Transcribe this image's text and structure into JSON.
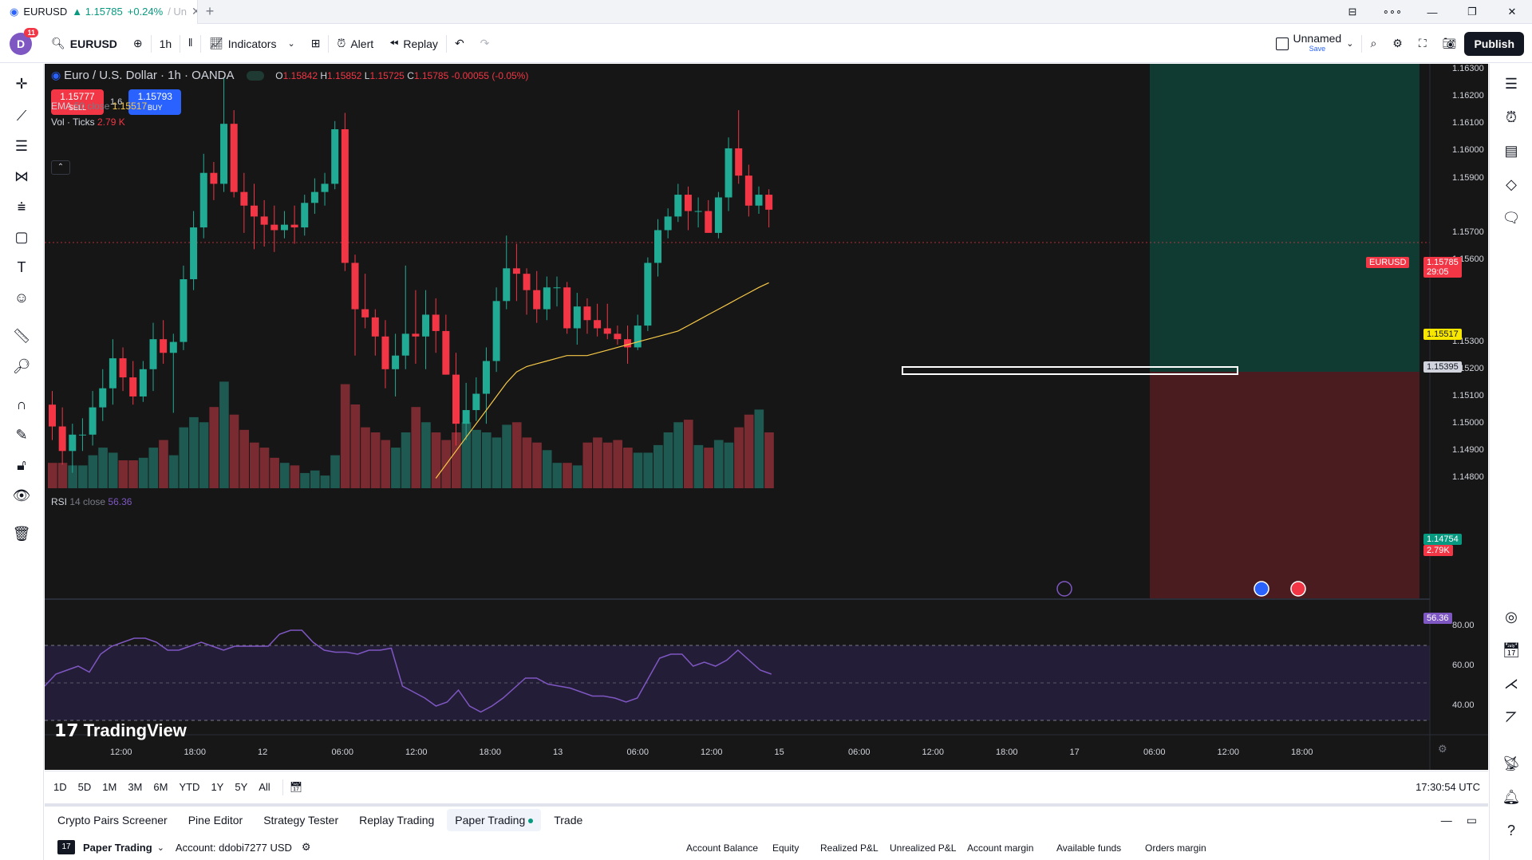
{
  "window": {
    "tab_symbol": "EURUSD",
    "tab_price": "▲ 1.15785",
    "tab_change": "+0.24%",
    "tab_suffix": "/ Un",
    "controls": [
      "⊟",
      "∘∘∘",
      "—",
      "❐",
      "✕"
    ]
  },
  "toolbar": {
    "avatar_letter": "D",
    "avatar_badge": "11",
    "symbol": "EURUSD",
    "interval": "1h",
    "indicators_label": "Indicators",
    "alert_label": "Alert",
    "replay_label": "Replay",
    "layout_name": "Unnamed",
    "layout_save": "Save",
    "publish_label": "Publish"
  },
  "chart": {
    "title": "Euro / U.S. Dollar · 1h · OANDA",
    "ohlc": {
      "o_label": "O",
      "o": "1.15842",
      "h_label": "H",
      "h": "1.15852",
      "l_label": "L",
      "l": "1.15725",
      "c_label": "C",
      "c": "1.15785",
      "change": "-0.00055 (-0.05%)"
    },
    "sell_price": "1.15777",
    "sell_label": "SELL",
    "spread": "1.6",
    "buy_price": "1.15793",
    "buy_label": "BUY",
    "ema_label": "EMA",
    "ema_params": "50 close",
    "ema_value": "1.15517",
    "vol_label": "Vol · Ticks",
    "vol_value": "2.79 K",
    "rsi_label": "RSI",
    "rsi_params": "14 close",
    "rsi_value": "56.36",
    "collapse": "⌃",
    "watermark": "TradingView",
    "colors": {
      "up": "#22ab94",
      "down": "#f23645",
      "ema": "#f7c948",
      "rsi": "#7e57c2",
      "bg": "#161616"
    },
    "price_axis": [
      "1.16300",
      "1.16200",
      "1.16100",
      "1.16000",
      "1.15900",
      "1.15700",
      "1.15600",
      "1.15300",
      "1.15200",
      "1.15100",
      "1.15000",
      "1.14900",
      "1.14800"
    ],
    "rsi_axis": [
      "80.00",
      "60.00",
      "40.00"
    ],
    "time_axis": [
      "12:00",
      "18:00",
      "12",
      "06:00",
      "12:00",
      "18:00",
      "13",
      "06:00",
      "12:00",
      "15",
      "06:00",
      "12:00",
      "18:00",
      "17",
      "06:00",
      "12:00",
      "18:00"
    ],
    "tags": {
      "symbol": "EURUSD",
      "last": "1.15785",
      "countdown": "29:05",
      "ema": "1.15517",
      "position": "1.15395",
      "stop": "1.14754",
      "volume": "2.79K",
      "rsi": "56.36"
    }
  },
  "chart_data": {
    "type": "candlestick",
    "title": "Euro / U.S. Dollar · 1h · OANDA",
    "ylim": [
      1.1474,
      1.1632
    ],
    "candles": [
      {
        "o": 1.1507,
        "h": 1.1512,
        "l": 1.1494,
        "c": 1.1499
      },
      {
        "o": 1.1499,
        "h": 1.1506,
        "l": 1.1485,
        "c": 1.149
      },
      {
        "o": 1.149,
        "h": 1.15,
        "l": 1.1482,
        "c": 1.1496
      },
      {
        "o": 1.1496,
        "h": 1.1502,
        "l": 1.149,
        "c": 1.1496
      },
      {
        "o": 1.1496,
        "h": 1.1512,
        "l": 1.1492,
        "c": 1.1506
      },
      {
        "o": 1.1506,
        "h": 1.152,
        "l": 1.1501,
        "c": 1.1513
      },
      {
        "o": 1.1513,
        "h": 1.1531,
        "l": 1.1507,
        "c": 1.1524
      },
      {
        "o": 1.1524,
        "h": 1.1528,
        "l": 1.1512,
        "c": 1.1517
      },
      {
        "o": 1.1517,
        "h": 1.1523,
        "l": 1.1507,
        "c": 1.151
      },
      {
        "o": 1.151,
        "h": 1.1523,
        "l": 1.1508,
        "c": 1.152
      },
      {
        "o": 1.152,
        "h": 1.1537,
        "l": 1.1512,
        "c": 1.1531
      },
      {
        "o": 1.1531,
        "h": 1.1538,
        "l": 1.1522,
        "c": 1.1526
      },
      {
        "o": 1.1526,
        "h": 1.1533,
        "l": 1.1504,
        "c": 1.153
      },
      {
        "o": 1.153,
        "h": 1.1558,
        "l": 1.1527,
        "c": 1.1553
      },
      {
        "o": 1.1553,
        "h": 1.1578,
        "l": 1.1549,
        "c": 1.1572
      },
      {
        "o": 1.1572,
        "h": 1.1599,
        "l": 1.1568,
        "c": 1.1592
      },
      {
        "o": 1.1592,
        "h": 1.1596,
        "l": 1.1582,
        "c": 1.1588
      },
      {
        "o": 1.1588,
        "h": 1.1627,
        "l": 1.1585,
        "c": 1.161
      },
      {
        "o": 1.161,
        "h": 1.1615,
        "l": 1.1583,
        "c": 1.1585
      },
      {
        "o": 1.1585,
        "h": 1.1592,
        "l": 1.157,
        "c": 1.158
      },
      {
        "o": 1.158,
        "h": 1.1588,
        "l": 1.1564,
        "c": 1.1576
      },
      {
        "o": 1.1576,
        "h": 1.1582,
        "l": 1.1565,
        "c": 1.1573
      },
      {
        "o": 1.1573,
        "h": 1.158,
        "l": 1.1563,
        "c": 1.1571
      },
      {
        "o": 1.1571,
        "h": 1.1578,
        "l": 1.1568,
        "c": 1.1573
      },
      {
        "o": 1.1573,
        "h": 1.158,
        "l": 1.1566,
        "c": 1.1572
      },
      {
        "o": 1.1572,
        "h": 1.1584,
        "l": 1.1569,
        "c": 1.1581
      },
      {
        "o": 1.1581,
        "h": 1.159,
        "l": 1.1577,
        "c": 1.1585
      },
      {
        "o": 1.1585,
        "h": 1.1592,
        "l": 1.158,
        "c": 1.1588
      },
      {
        "o": 1.1588,
        "h": 1.1611,
        "l": 1.1586,
        "c": 1.1608
      },
      {
        "o": 1.1608,
        "h": 1.1614,
        "l": 1.1556,
        "c": 1.1559
      },
      {
        "o": 1.1559,
        "h": 1.1562,
        "l": 1.1525,
        "c": 1.1542
      },
      {
        "o": 1.1542,
        "h": 1.1555,
        "l": 1.1535,
        "c": 1.1539
      },
      {
        "o": 1.1539,
        "h": 1.1542,
        "l": 1.1525,
        "c": 1.1532
      },
      {
        "o": 1.1532,
        "h": 1.1538,
        "l": 1.1513,
        "c": 1.152
      },
      {
        "o": 1.152,
        "h": 1.1533,
        "l": 1.151,
        "c": 1.1525
      },
      {
        "o": 1.1525,
        "h": 1.1558,
        "l": 1.152,
        "c": 1.1533
      },
      {
        "o": 1.1533,
        "h": 1.1549,
        "l": 1.1522,
        "c": 1.1532
      },
      {
        "o": 1.1532,
        "h": 1.1549,
        "l": 1.152,
        "c": 1.154
      },
      {
        "o": 1.154,
        "h": 1.1546,
        "l": 1.1526,
        "c": 1.1534
      },
      {
        "o": 1.1534,
        "h": 1.154,
        "l": 1.1518,
        "c": 1.1518
      },
      {
        "o": 1.1518,
        "h": 1.1526,
        "l": 1.1492,
        "c": 1.15
      },
      {
        "o": 1.15,
        "h": 1.1515,
        "l": 1.1494,
        "c": 1.1505
      },
      {
        "o": 1.1505,
        "h": 1.1517,
        "l": 1.1501,
        "c": 1.1511
      },
      {
        "o": 1.1511,
        "h": 1.1528,
        "l": 1.15,
        "c": 1.1523
      },
      {
        "o": 1.1523,
        "h": 1.155,
        "l": 1.1519,
        "c": 1.1545
      },
      {
        "o": 1.1545,
        "h": 1.1569,
        "l": 1.1542,
        "c": 1.1557
      },
      {
        "o": 1.1557,
        "h": 1.1566,
        "l": 1.1545,
        "c": 1.1555
      },
      {
        "o": 1.1555,
        "h": 1.1557,
        "l": 1.154,
        "c": 1.1549
      },
      {
        "o": 1.1549,
        "h": 1.1556,
        "l": 1.1537,
        "c": 1.1542
      },
      {
        "o": 1.1542,
        "h": 1.1554,
        "l": 1.1538,
        "c": 1.155
      },
      {
        "o": 1.155,
        "h": 1.1554,
        "l": 1.1543,
        "c": 1.155
      },
      {
        "o": 1.155,
        "h": 1.1552,
        "l": 1.1533,
        "c": 1.1535
      },
      {
        "o": 1.1535,
        "h": 1.1548,
        "l": 1.1529,
        "c": 1.1543
      },
      {
        "o": 1.1543,
        "h": 1.1546,
        "l": 1.1533,
        "c": 1.1538
      },
      {
        "o": 1.1538,
        "h": 1.1544,
        "l": 1.1532,
        "c": 1.1535
      },
      {
        "o": 1.1535,
        "h": 1.1544,
        "l": 1.1531,
        "c": 1.1533
      },
      {
        "o": 1.1533,
        "h": 1.1536,
        "l": 1.1529,
        "c": 1.1531
      },
      {
        "o": 1.1531,
        "h": 1.1536,
        "l": 1.1522,
        "c": 1.1528
      },
      {
        "o": 1.1528,
        "h": 1.154,
        "l": 1.1527,
        "c": 1.1536
      },
      {
        "o": 1.1536,
        "h": 1.1561,
        "l": 1.1534,
        "c": 1.1559
      },
      {
        "o": 1.1559,
        "h": 1.1575,
        "l": 1.1554,
        "c": 1.1571
      },
      {
        "o": 1.1571,
        "h": 1.1579,
        "l": 1.1568,
        "c": 1.1576
      },
      {
        "o": 1.1576,
        "h": 1.1588,
        "l": 1.1574,
        "c": 1.1584
      },
      {
        "o": 1.1584,
        "h": 1.1587,
        "l": 1.1571,
        "c": 1.1578
      },
      {
        "o": 1.1578,
        "h": 1.1583,
        "l": 1.1572,
        "c": 1.1578
      },
      {
        "o": 1.1578,
        "h": 1.1582,
        "l": 1.157,
        "c": 1.157
      },
      {
        "o": 1.157,
        "h": 1.1585,
        "l": 1.1568,
        "c": 1.1583
      },
      {
        "o": 1.1583,
        "h": 1.1605,
        "l": 1.1578,
        "c": 1.1601
      },
      {
        "o": 1.1601,
        "h": 1.1615,
        "l": 1.1588,
        "c": 1.1591
      },
      {
        "o": 1.1591,
        "h": 1.1595,
        "l": 1.1576,
        "c": 1.158
      },
      {
        "o": 1.158,
        "h": 1.1587,
        "l": 1.1577,
        "c": 1.1584
      },
      {
        "o": 1.1584,
        "h": 1.1586,
        "l": 1.1572,
        "c": 1.15785
      }
    ],
    "volume_ticks_k": [
      1.0,
      1.0,
      0.9,
      0.9,
      1.3,
      1.6,
      1.4,
      1.1,
      1.1,
      1.2,
      1.6,
      1.9,
      1.3,
      2.4,
      2.8,
      2.6,
      3.2,
      4.2,
      2.9,
      2.3,
      1.8,
      1.6,
      1.2,
      1.0,
      0.9,
      0.6,
      0.7,
      0.5,
      1.3,
      4.1,
      3.3,
      2.4,
      2.2,
      1.9,
      1.6,
      2.2,
      3.2,
      2.6,
      2.2,
      1.9,
      2.2,
      2.6,
      2.3,
      2.2,
      2.0,
      2.5,
      2.6,
      2.0,
      1.8,
      1.5,
      1.0,
      1.0,
      0.9,
      1.8,
      2.0,
      1.8,
      1.9,
      1.6,
      1.4,
      1.4,
      1.7,
      2.2,
      2.6,
      2.7,
      1.7,
      1.6,
      1.9,
      1.8,
      2.4,
      2.9,
      3.1,
      2.2,
      1.5
    ],
    "ema50": [
      1.148,
      1.1485,
      1.149,
      1.1495,
      1.15,
      1.1505,
      1.151,
      1.1515,
      1.1519,
      1.1521,
      1.1522,
      1.1523,
      1.1524,
      1.1525,
      1.1525,
      1.1525,
      1.1526,
      1.1527,
      1.1528,
      1.1529,
      1.153,
      1.1531,
      1.1532,
      1.1533,
      1.1534,
      1.1536,
      1.1538,
      1.154,
      1.1542,
      1.1544,
      1.1546,
      1.1548,
      1.155,
      1.15517
    ],
    "rsi": [
      50,
      56,
      58,
      60,
      57,
      66,
      70,
      72,
      74,
      74,
      72,
      68,
      68,
      70,
      72,
      70,
      68,
      70,
      70,
      70,
      70,
      76,
      78,
      78,
      72,
      68,
      67,
      67,
      66,
      68,
      68,
      69,
      50,
      47,
      44,
      40,
      42,
      48,
      40,
      37,
      40,
      44,
      49,
      54,
      54,
      51,
      50,
      49,
      47,
      45,
      45,
      44,
      42,
      44,
      54,
      64,
      66,
      66,
      60,
      62,
      60,
      63,
      68,
      63,
      58,
      56
    ],
    "rsi_levels": [
      70,
      50,
      30
    ],
    "position": {
      "entry": 1.15395,
      "take_profit_zone": "above entry",
      "stop": 1.14754
    },
    "last_price": 1.15785
  },
  "rangebar": {
    "ranges": [
      "1D",
      "5D",
      "1M",
      "3M",
      "6M",
      "YTD",
      "1Y",
      "5Y",
      "All"
    ],
    "clock": "17:30:54 UTC"
  },
  "bottom_tabs": [
    "Crypto Pairs Screener",
    "Pine Editor",
    "Strategy Tester",
    "Replay Trading",
    "Paper Trading",
    "Trade"
  ],
  "panel": {
    "broker": "Paper Trading",
    "account": "Account: ddobi7277 USD",
    "columns": [
      "Account Balance",
      "Equity",
      "Realized P&L",
      "Unrealized P&L",
      "Account margin",
      "Available funds",
      "Orders margin"
    ]
  }
}
